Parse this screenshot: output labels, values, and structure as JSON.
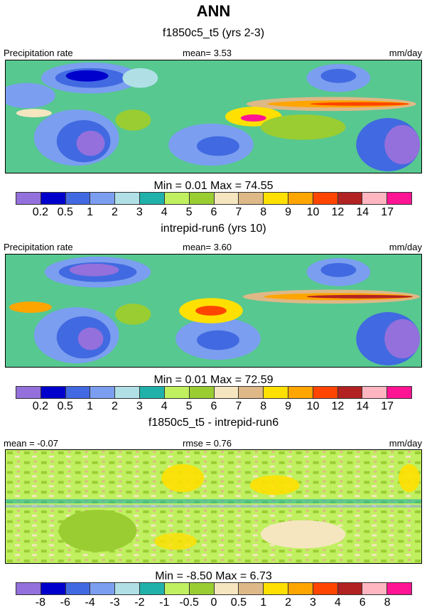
{
  "title": "ANN",
  "palette": [
    "#9370DB",
    "#0000CD",
    "#4169E1",
    "#7B9EF0",
    "#B0E0E6",
    "#20B2AA",
    "#C0F060",
    "#9ACD32",
    "#F5E6C0",
    "#DEB887",
    "#FFE000",
    "#FFA500",
    "#FF4500",
    "#B22222",
    "#FFB6C1",
    "#FF1493"
  ],
  "panels": [
    {
      "subtitle": "f1850c5_t5 (yrs 2-3)",
      "left_label": "Precipitation rate",
      "center_label": "mean=   3.53",
      "right_label": "mm/day",
      "minmax": "Min =   0.01 Max =  74.55",
      "ticks": [
        "0.2",
        "0.5",
        "1",
        "2",
        "3",
        "4",
        "5",
        "6",
        "7",
        "8",
        "9",
        "10",
        "12",
        "14",
        "17"
      ]
    },
    {
      "subtitle": "intrepid-run6 (yrs 10)",
      "left_label": "Precipitation rate",
      "center_label": "mean=   3.60",
      "right_label": "mm/day",
      "minmax": "Min =   0.01 Max =  72.59",
      "ticks": [
        "0.2",
        "0.5",
        "1",
        "2",
        "3",
        "4",
        "5",
        "6",
        "7",
        "8",
        "9",
        "10",
        "12",
        "14",
        "17"
      ]
    },
    {
      "subtitle": "f1850c5_t5 - intrepid-run6",
      "left_label": "mean =  -0.07",
      "center_label": "rmse =   0.76",
      "right_label": "mm/day",
      "minmax": "Min =  -8.50 Max =   6.73",
      "ticks": [
        "-8",
        "-6",
        "-4",
        "-3",
        "-2",
        "-1",
        "-0.5",
        "0",
        "0.5",
        "1",
        "2",
        "3",
        "4",
        "6",
        "8"
      ]
    }
  ]
}
